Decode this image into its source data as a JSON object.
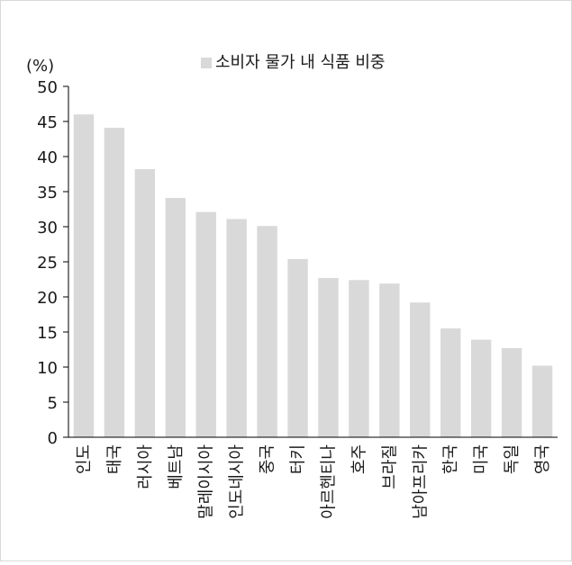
{
  "chart_data": {
    "type": "bar",
    "title": "",
    "xlabel": "",
    "ylabel": "(%)",
    "ylim": [
      0,
      50
    ],
    "yticks": [
      0,
      5,
      10,
      15,
      20,
      25,
      30,
      35,
      40,
      45,
      50
    ],
    "grid": false,
    "legend_position": "top",
    "categories": [
      "인도",
      "태국",
      "러시아",
      "베트남",
      "말레이시아",
      "인도네시아",
      "중국",
      "터키",
      "아르헨티나",
      "호주",
      "브라질",
      "남아프리카",
      "한국",
      "미국",
      "독일",
      "영국"
    ],
    "series": [
      {
        "name": "소비자 물가 내 식품 비중",
        "color": "#d9d9d9",
        "values": [
          46.0,
          44.1,
          38.2,
          34.1,
          32.1,
          31.1,
          30.1,
          25.4,
          22.7,
          22.4,
          21.9,
          19.2,
          15.5,
          13.9,
          12.7,
          10.2
        ]
      }
    ]
  }
}
